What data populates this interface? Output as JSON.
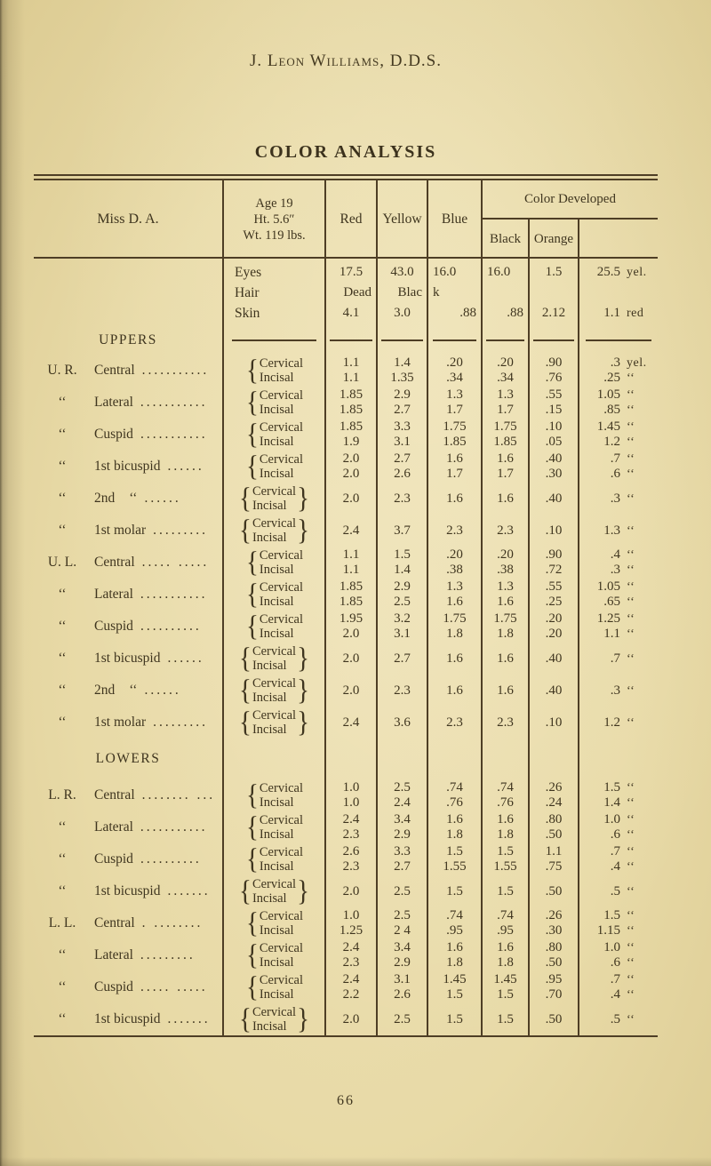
{
  "page": {
    "running_head": "J. Leon Williams, D.D.S.",
    "page_number": "66"
  },
  "table": {
    "title": "COLOR ANALYSIS",
    "header": {
      "subject": "Miss D. A.",
      "stats": [
        "Age 19",
        "Ht. 5.6″",
        "Wt. 119 lbs."
      ],
      "columns": [
        "Red",
        "Yellow",
        "Blue"
      ],
      "developed": "Color Developed",
      "developed_sub": [
        "Black",
        "Orange",
        ""
      ]
    },
    "part_labels": [
      "Cervical",
      "Incisal"
    ],
    "vitals": [
      {
        "label": "Eyes",
        "red": "17.5",
        "yellow": "43.0",
        "blue": "16.0",
        "black": "16.0",
        "orange": "1.5",
        "dev": "25.5",
        "unit": "yel."
      },
      {
        "label": "Hair",
        "red": "Dead",
        "yellow": "Blac",
        "blue": "k",
        "black": "",
        "orange": "",
        "dev": "",
        "unit": ""
      },
      {
        "label": "Skin",
        "red": "4.1",
        "yellow": "3.0",
        "blue": ".88",
        "black": ".88",
        "orange": "2.12",
        "dev": "1.1",
        "unit": "red"
      }
    ],
    "sections": [
      {
        "name": "UPPERS",
        "divider_dashes": true,
        "rows": [
          {
            "prefix": "U. R.",
            "name": "Central",
            "dots": "...........",
            "type": "pair",
            "cervical": {
              "red": "1.1",
              "yellow": "1.4",
              "blue": ".20",
              "black": ".20",
              "orange": ".90",
              "dev": ".3",
              "unit": "yel."
            },
            "incisal": {
              "red": "1.1",
              "yellow": "1.35",
              "blue": ".34",
              "black": ".34",
              "orange": ".76",
              "dev": ".25",
              "unit": "‘‘"
            }
          },
          {
            "prefix": "‘‘",
            "name": "Lateral",
            "dots": "...........",
            "type": "pair",
            "cervical": {
              "red": "1.85",
              "yellow": "2.9",
              "blue": "1.3",
              "black": "1.3",
              "orange": ".55",
              "dev": "1.05",
              "unit": "‘‘"
            },
            "incisal": {
              "red": "1.85",
              "yellow": "2.7",
              "blue": "1.7",
              "black": "1.7",
              "orange": ".15",
              "dev": ".85",
              "unit": "‘‘"
            }
          },
          {
            "prefix": "‘‘",
            "name": "Cuspid",
            "dots": "...........",
            "type": "pair",
            "cervical": {
              "red": "1.85",
              "yellow": "3.3",
              "blue": "1.75",
              "black": "1.75",
              "orange": ".10",
              "dev": "1.45",
              "unit": "‘‘"
            },
            "incisal": {
              "red": "1.9",
              "yellow": "3.1",
              "blue": "1.85",
              "black": "1.85",
              "orange": ".05",
              "dev": "1.2",
              "unit": "‘‘"
            }
          },
          {
            "prefix": "‘‘",
            "name": "1st bicuspid",
            "dots": "......",
            "type": "pair",
            "cervical": {
              "red": "2.0",
              "yellow": "2.7",
              "blue": "1.6",
              "black": "1.6",
              "orange": ".40",
              "dev": ".7",
              "unit": "‘‘"
            },
            "incisal": {
              "red": "2.0",
              "yellow": "2.6",
              "blue": "1.7",
              "black": "1.7",
              "orange": ".30",
              "dev": ".6",
              "unit": "‘‘"
            }
          },
          {
            "prefix": "‘‘",
            "name": "2nd",
            "name_suffix": "‘‘",
            "dots": "......",
            "type": "combined",
            "values": {
              "red": "2.0",
              "yellow": "2.3",
              "blue": "1.6",
              "black": "1.6",
              "orange": ".40",
              "dev": ".3",
              "unit": "‘‘"
            }
          },
          {
            "prefix": "‘‘",
            "name": "1st molar",
            "dots": ".........",
            "type": "combined",
            "values": {
              "red": "2.4",
              "yellow": "3.7",
              "blue": "2.3",
              "black": "2.3",
              "orange": ".10",
              "dev": "1.3",
              "unit": "‘‘"
            }
          },
          {
            "prefix": "U. L.",
            "name": "Central",
            "dots": "..... .....",
            "type": "pair",
            "cervical": {
              "red": "1.1",
              "yellow": "1.5",
              "blue": ".20",
              "black": ".20",
              "orange": ".90",
              "dev": ".4",
              "unit": "‘‘"
            },
            "incisal": {
              "red": "1.1",
              "yellow": "1.4",
              "blue": ".38",
              "black": ".38",
              "orange": ".72",
              "dev": ".3",
              "unit": "‘‘"
            }
          },
          {
            "prefix": "‘‘",
            "name": "Lateral",
            "dots": "...........",
            "type": "pair",
            "cervical": {
              "red": "1.85",
              "yellow": "2.9",
              "blue": "1.3",
              "black": "1.3",
              "orange": ".55",
              "dev": "1.05",
              "unit": "‘‘"
            },
            "incisal": {
              "red": "1.85",
              "yellow": "2.5",
              "blue": "1.6",
              "black": "1.6",
              "orange": ".25",
              "dev": ".65",
              "unit": "‘‘"
            }
          },
          {
            "prefix": "‘‘",
            "name": "Cuspid",
            "dots": "..........",
            "type": "pair",
            "cervical": {
              "red": "1.95",
              "yellow": "3.2",
              "blue": "1.75",
              "black": "1.75",
              "orange": ".20",
              "dev": "1.25",
              "unit": "‘‘"
            },
            "incisal": {
              "red": "2.0",
              "yellow": "3.1",
              "blue": "1.8",
              "black": "1.8",
              "orange": ".20",
              "dev": "1.1",
              "unit": "‘‘"
            }
          },
          {
            "prefix": "‘‘",
            "name": "1st bicuspid",
            "dots": "......",
            "type": "combined",
            "values": {
              "red": "2.0",
              "yellow": "2.7",
              "blue": "1.6",
              "black": "1.6",
              "orange": ".40",
              "dev": ".7",
              "unit": "‘‘"
            }
          },
          {
            "prefix": "‘‘",
            "name": "2nd",
            "name_suffix": "‘‘",
            "dots": "......",
            "type": "combined",
            "values": {
              "red": "2.0",
              "yellow": "2.3",
              "blue": "1.6",
              "black": "1.6",
              "orange": ".40",
              "dev": ".3",
              "unit": "‘‘"
            }
          },
          {
            "prefix": "‘‘",
            "name": "1st molar",
            "dots": ".........",
            "type": "combined",
            "values": {
              "red": "2.4",
              "yellow": "3.6",
              "blue": "2.3",
              "black": "2.3",
              "orange": ".10",
              "dev": "1.2",
              "unit": "‘‘"
            }
          }
        ]
      },
      {
        "name": "LOWERS",
        "divider_dashes": false,
        "rows": [
          {
            "prefix": "L. R.",
            "name": "Central",
            "dots": "........ ...",
            "type": "pair",
            "cervical": {
              "red": "1.0",
              "yellow": "2.5",
              "blue": ".74",
              "black": ".74",
              "orange": ".26",
              "dev": "1.5",
              "unit": "‘‘"
            },
            "incisal": {
              "red": "1.0",
              "yellow": "2.4",
              "blue": ".76",
              "black": ".76",
              "orange": ".24",
              "dev": "1.4",
              "unit": "‘‘"
            }
          },
          {
            "prefix": "‘‘",
            "name": "Lateral",
            "dots": "...........",
            "type": "pair",
            "cervical": {
              "red": "2.4",
              "yellow": "3.4",
              "blue": "1.6",
              "black": "1.6",
              "orange": ".80",
              "dev": "1.0",
              "unit": "‘‘"
            },
            "incisal": {
              "red": "2.3",
              "yellow": "2.9",
              "blue": "1.8",
              "black": "1.8",
              "orange": ".50",
              "dev": ".6",
              "unit": "‘‘"
            }
          },
          {
            "prefix": "‘‘",
            "name": "Cuspid",
            "dots": "..........",
            "type": "pair",
            "cervical": {
              "red": "2.6",
              "yellow": "3.3",
              "blue": "1.5",
              "black": "1.5",
              "orange": "1.1",
              "dev": ".7",
              "unit": "‘‘"
            },
            "incisal": {
              "red": "2.3",
              "yellow": "2.7",
              "blue": "1.55",
              "black": "1.55",
              "orange": ".75",
              "dev": ".4",
              "unit": "‘‘"
            }
          },
          {
            "prefix": "‘‘",
            "name": "1st bicuspid",
            "dots": ".......",
            "type": "combined",
            "values": {
              "red": "2.0",
              "yellow": "2.5",
              "blue": "1.5",
              "black": "1.5",
              "orange": ".50",
              "dev": ".5",
              "unit": "‘‘"
            }
          },
          {
            "prefix": "L. L.",
            "name": "Central",
            "dots": ". ........",
            "type": "pair",
            "cervical": {
              "red": "1.0",
              "yellow": "2.5",
              "blue": ".74",
              "black": ".74",
              "orange": ".26",
              "dev": "1.5",
              "unit": "‘‘"
            },
            "incisal": {
              "red": "1.25",
              "yellow": "2 4",
              "blue": ".95",
              "black": ".95",
              "orange": ".30",
              "dev": "1.15",
              "unit": "‘‘"
            }
          },
          {
            "prefix": "‘‘",
            "name": "Lateral",
            "dots": ".........",
            "type": "pair",
            "cervical": {
              "red": "2.4",
              "yellow": "3.4",
              "blue": "1.6",
              "black": "1.6",
              "orange": ".80",
              "dev": "1.0",
              "unit": "‘‘"
            },
            "incisal": {
              "red": "2.3",
              "yellow": "2.9",
              "blue": "1.8",
              "black": "1.8",
              "orange": ".50",
              "dev": ".6",
              "unit": "‘‘"
            }
          },
          {
            "prefix": "‘‘",
            "name": "Cuspid",
            "dots": "..... .....",
            "type": "pair",
            "cervical": {
              "red": "2.4",
              "yellow": "3.1",
              "blue": "1.45",
              "black": "1.45",
              "orange": ".95",
              "dev": ".7",
              "unit": "‘‘"
            },
            "incisal": {
              "red": "2.2",
              "yellow": "2.6",
              "blue": "1.5",
              "black": "1.5",
              "orange": ".70",
              "dev": ".4",
              "unit": "‘‘"
            }
          },
          {
            "prefix": "‘‘",
            "name": "1st bicuspid",
            "dots": ".......",
            "type": "combined",
            "values": {
              "red": "2.0",
              "yellow": "2.5",
              "blue": "1.5",
              "black": "1.5",
              "orange": ".50",
              "dev": ".5",
              "unit": "‘‘"
            }
          }
        ]
      }
    ]
  }
}
